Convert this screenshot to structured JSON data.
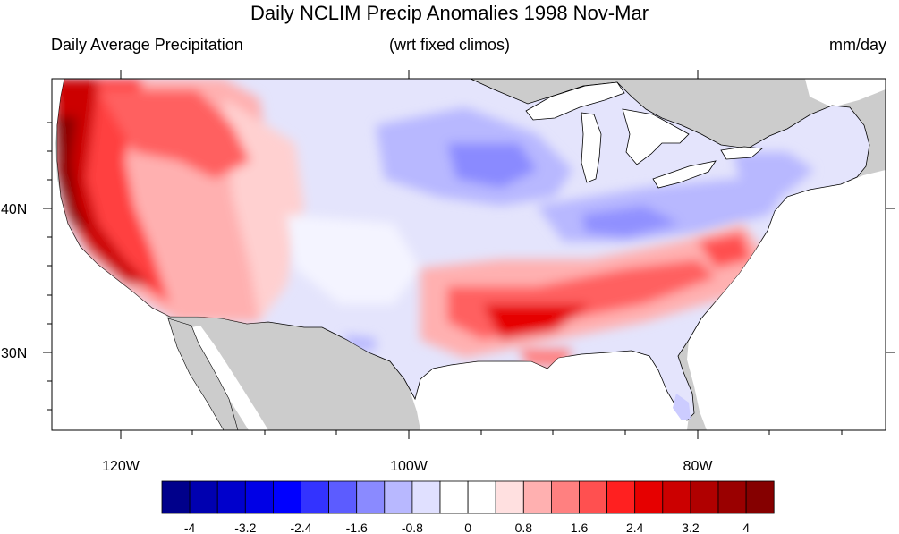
{
  "title": "Daily NCLIM Precip Anomalies 1998 Nov-Mar",
  "subtitle_left": "Daily Average Precipitation",
  "subtitle_center": "(wrt fixed climos)",
  "subtitle_right": "mm/day",
  "axes": {
    "lon_labels": [
      "120W",
      "100W",
      "80W"
    ],
    "lat_labels": [
      "40N",
      "30N"
    ]
  },
  "colors": {
    "land_outside": "#cccccc",
    "ocean": "#ffffff",
    "palette": [
      "#00008b",
      "#0000b0",
      "#0000cc",
      "#0000e6",
      "#0000ff",
      "#3333ff",
      "#5c5cff",
      "#8a8aff",
      "#b8b8ff",
      "#e0e0ff",
      "#ffffff",
      "#ffffff",
      "#ffe0e0",
      "#ffb0b0",
      "#ff8080",
      "#ff5050",
      "#ff2020",
      "#e60000",
      "#cc0000",
      "#b00000",
      "#9a0000",
      "#850000"
    ]
  },
  "colorbar": {
    "tick_labels": [
      "-4",
      "-3.2",
      "-2.4",
      "-1.6",
      "-0.8",
      "0",
      "0.8",
      "1.6",
      "2.4",
      "3.2",
      "4"
    ]
  }
}
